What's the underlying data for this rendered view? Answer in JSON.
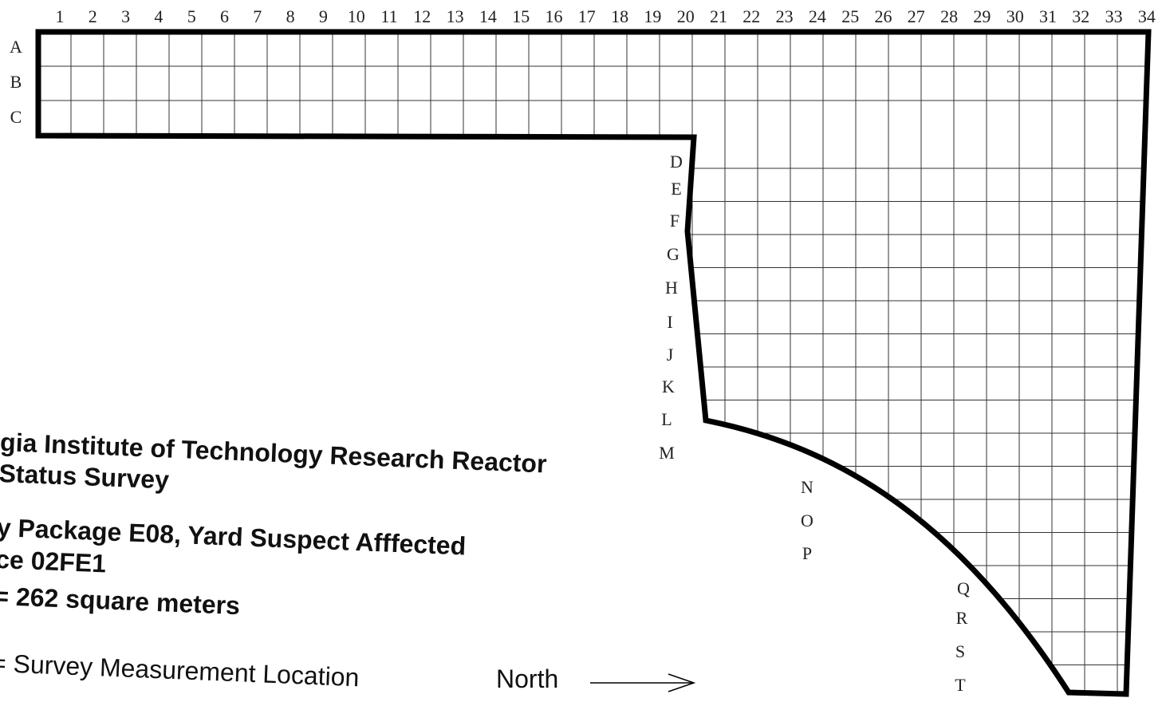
{
  "column_labels": [
    1,
    2,
    3,
    4,
    5,
    6,
    7,
    8,
    9,
    10,
    11,
    12,
    13,
    14,
    15,
    16,
    17,
    18,
    19,
    20,
    21,
    22,
    23,
    24,
    25,
    26,
    27,
    28,
    29,
    30,
    31,
    32,
    33,
    34
  ],
  "row_labels": [
    "A",
    "B",
    "C",
    "D",
    "E",
    "F",
    "G",
    "H",
    "I",
    "J",
    "K",
    "L",
    "M",
    "N",
    "O",
    "P",
    "Q",
    "R",
    "S",
    "T"
  ],
  "caption": [
    "gia Institute of Technology Research Reactor",
    "Status Survey",
    "y Package E08, Yard Suspect Afffected",
    "ce 02FE1",
    "= 262 square meters"
  ],
  "legend": "= Survey Measurement Location",
  "north": "North"
}
